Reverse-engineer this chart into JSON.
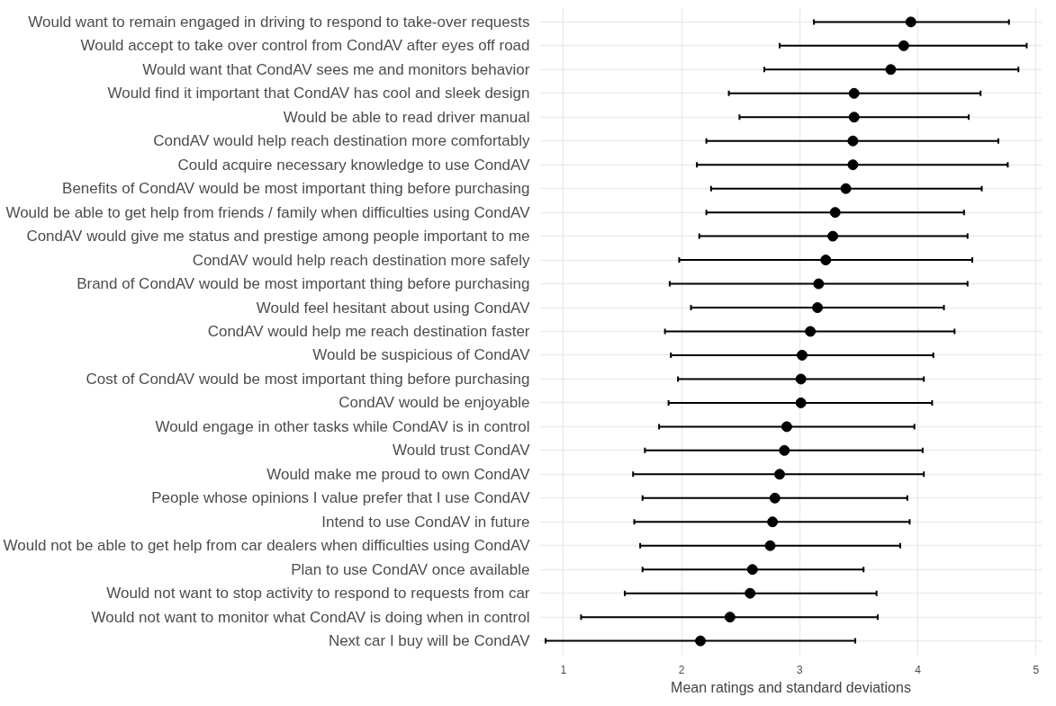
{
  "chart_data": {
    "type": "scatter",
    "orientation": "horizontal",
    "xlabel": "Mean ratings and standard deviations",
    "categories": [
      "Would want to remain engaged in driving to respond to take-over requests",
      "Would accept to take over control from CondAV after eyes off road",
      "Would want that CondAV sees me and monitors behavior",
      "Would find it important that CondAV has cool and sleek design",
      "Would be able to read driver manual",
      "CondAV would help reach destination more comfortably",
      "Could acquire necessary knowledge to use CondAV",
      "Benefits of CondAV would be most important thing before purchasing",
      "Would be able to get help from friends / family when difficulties using CondAV",
      "CondAV would give me status and prestige among people important to me",
      "CondAV would help reach destination more safely",
      "Brand of CondAV would be most important thing before purchasing",
      "Would feel hesitant about using CondAV",
      "CondAV would help me reach destination faster",
      "Would be suspicious of CondAV",
      "Cost of CondAV would be most important thing before purchasing",
      "CondAV would be enjoyable",
      "Would engage in other tasks while CondAV is in control",
      "Would trust CondAV",
      "Would make me proud to own CondAV",
      "People whose opinions I value prefer that I use CondAV",
      "Intend to use CondAV in future",
      "Would not be able to get help from car dealers when difficulties using CondAV",
      "Plan to use CondAV once available",
      "Would not want to stop activity to respond to requests from car",
      "Would not want to monitor what CondAV is doing when in control",
      "Next car I buy will be CondAV"
    ],
    "series": [
      {
        "color": "#000000",
        "values": [
          3.94,
          3.88,
          3.77,
          3.46,
          3.46,
          3.45,
          3.45,
          3.39,
          3.3,
          3.28,
          3.22,
          3.16,
          3.15,
          3.09,
          3.02,
          3.01,
          3.01,
          2.89,
          2.87,
          2.83,
          2.79,
          2.77,
          2.75,
          2.6,
          2.58,
          2.41,
          2.16
        ],
        "errors": [
          [
            3.12,
            4.77
          ],
          [
            2.83,
            4.92
          ],
          [
            2.7,
            4.85
          ],
          [
            2.4,
            4.53
          ],
          [
            2.49,
            4.43
          ],
          [
            2.21,
            4.68
          ],
          [
            2.13,
            4.76
          ],
          [
            2.25,
            4.54
          ],
          [
            2.21,
            4.39
          ],
          [
            2.15,
            4.42
          ],
          [
            1.98,
            4.46
          ],
          [
            1.9,
            4.42
          ],
          [
            2.08,
            4.22
          ],
          [
            1.86,
            4.31
          ],
          [
            1.91,
            4.13
          ],
          [
            1.97,
            4.05
          ],
          [
            1.89,
            4.12
          ],
          [
            1.81,
            3.97
          ],
          [
            1.69,
            4.04
          ],
          [
            1.59,
            4.05
          ],
          [
            1.67,
            3.91
          ],
          [
            1.6,
            3.93
          ],
          [
            1.65,
            3.85
          ],
          [
            1.67,
            3.54
          ],
          [
            1.52,
            3.65
          ],
          [
            1.15,
            3.66
          ],
          [
            0.85,
            3.47
          ]
        ]
      }
    ],
    "xlim": [
      0.8,
      5.05
    ],
    "xticks": [
      1,
      2,
      3,
      4,
      5
    ],
    "grid": true,
    "marker": "circle"
  }
}
